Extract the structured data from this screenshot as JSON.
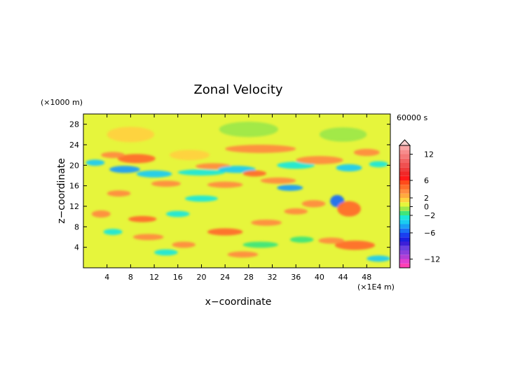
{
  "chart_data": {
    "type": "heatmap",
    "title": "Zonal Velocity",
    "xlabel": "x−coordinate",
    "ylabel": "z−coordinate",
    "x_unit": "(×1E4 m)",
    "y_unit": "(×1000 m)",
    "time_label": "60000 s",
    "xlim": [
      0,
      52
    ],
    "ylim": [
      0,
      30
    ],
    "x_ticks": [
      4,
      8,
      12,
      16,
      20,
      24,
      28,
      32,
      36,
      40,
      44,
      48
    ],
    "x_tick_labels": [
      "4",
      "8",
      "12",
      "16",
      "20",
      "24",
      "28",
      "32",
      "36",
      "40",
      "44",
      "48"
    ],
    "y_ticks": [
      4,
      8,
      12,
      16,
      20,
      24,
      28
    ],
    "y_tick_labels": [
      "4",
      "8",
      "12",
      "16",
      "20",
      "24",
      "28"
    ],
    "colorbar": {
      "range": [
        -14,
        14
      ],
      "ticks": [
        12,
        6,
        2,
        0,
        -2,
        -6,
        -12
      ],
      "tick_labels": [
        "12",
        "6",
        "2",
        "0",
        "−2",
        "−6",
        "−12"
      ],
      "levels": [
        {
          "from": -14,
          "to": -13,
          "color": "#ff3fb4"
        },
        {
          "from": -13,
          "to": -12,
          "color": "#e13fcf"
        },
        {
          "from": -12,
          "to": -11,
          "color": "#b23fd6"
        },
        {
          "from": -11,
          "to": -10,
          "color": "#8c3fdc"
        },
        {
          "from": -10,
          "to": -9,
          "color": "#6a3fe0"
        },
        {
          "from": -9,
          "to": -8,
          "color": "#3d1fd8"
        },
        {
          "from": -8,
          "to": -7,
          "color": "#1a1fe0"
        },
        {
          "from": -7,
          "to": -6,
          "color": "#1a3ff0"
        },
        {
          "from": -6,
          "to": -5,
          "color": "#1a6ff5"
        },
        {
          "from": -5,
          "to": -4,
          "color": "#1a9ff5"
        },
        {
          "from": -4,
          "to": -3,
          "color": "#1accf0"
        },
        {
          "from": -3,
          "to": -2,
          "color": "#1ae8d8"
        },
        {
          "from": -2,
          "to": -1,
          "color": "#3fe67a"
        },
        {
          "from": -1,
          "to": 0,
          "color": "#9ee84a"
        },
        {
          "from": 0,
          "to": 1,
          "color": "#e6f53c"
        },
        {
          "from": 1,
          "to": 2,
          "color": "#ffd23f"
        },
        {
          "from": 2,
          "to": 3,
          "color": "#ffaa3f"
        },
        {
          "from": 3,
          "to": 4,
          "color": "#ff8c3f"
        },
        {
          "from": 4,
          "to": 5,
          "color": "#ff6e2a"
        },
        {
          "from": 5,
          "to": 6,
          "color": "#ff4b1a"
        },
        {
          "from": 6,
          "to": 7,
          "color": "#ff1a1a"
        },
        {
          "from": 7,
          "to": 8,
          "color": "#f02828"
        },
        {
          "from": 8,
          "to": 9,
          "color": "#ee3c3c"
        },
        {
          "from": 9,
          "to": 10,
          "color": "#f05050"
        },
        {
          "from": 10,
          "to": 11,
          "color": "#f26464"
        },
        {
          "from": 11,
          "to": 12,
          "color": "#f47878"
        },
        {
          "from": 12,
          "to": 13,
          "color": "#f78c8c"
        },
        {
          "from": 13,
          "to": 14,
          "color": "#f9a5a5"
        }
      ]
    },
    "field_features": [
      {
        "x": 9,
        "z": 21.3,
        "w": 3.2,
        "h": 0.9,
        "value": 4
      },
      {
        "x": 5,
        "z": 22.0,
        "w": 2.0,
        "h": 0.6,
        "value": 3
      },
      {
        "x": 2,
        "z": 20.5,
        "w": 1.6,
        "h": 0.6,
        "value": -4
      },
      {
        "x": 7,
        "z": 19.2,
        "w": 2.6,
        "h": 0.7,
        "value": -5
      },
      {
        "x": 12,
        "z": 18.3,
        "w": 3.0,
        "h": 0.7,
        "value": -4
      },
      {
        "x": 14,
        "z": 16.4,
        "w": 2.5,
        "h": 0.6,
        "value": 3
      },
      {
        "x": 20,
        "z": 18.6,
        "w": 4.0,
        "h": 0.6,
        "value": -3
      },
      {
        "x": 22,
        "z": 19.8,
        "w": 3.0,
        "h": 0.6,
        "value": 3
      },
      {
        "x": 26,
        "z": 19.2,
        "w": 3.2,
        "h": 0.7,
        "value": -4
      },
      {
        "x": 29,
        "z": 18.4,
        "w": 2.0,
        "h": 0.6,
        "value": 4
      },
      {
        "x": 33,
        "z": 17.0,
        "w": 3.0,
        "h": 0.6,
        "value": 3
      },
      {
        "x": 35,
        "z": 15.6,
        "w": 2.2,
        "h": 0.6,
        "value": -5
      },
      {
        "x": 30,
        "z": 23.2,
        "w": 6.0,
        "h": 0.8,
        "value": 3
      },
      {
        "x": 36,
        "z": 20.0,
        "w": 3.2,
        "h": 0.7,
        "value": -3
      },
      {
        "x": 40,
        "z": 21.0,
        "w": 4.0,
        "h": 0.8,
        "value": 3
      },
      {
        "x": 45,
        "z": 19.5,
        "w": 2.2,
        "h": 0.7,
        "value": -4
      },
      {
        "x": 48,
        "z": 22.5,
        "w": 2.2,
        "h": 0.7,
        "value": 3
      },
      {
        "x": 50,
        "z": 20.2,
        "w": 1.6,
        "h": 0.6,
        "value": -3
      },
      {
        "x": 43,
        "z": 13.0,
        "w": 1.2,
        "h": 1.2,
        "value": -6
      },
      {
        "x": 45,
        "z": 11.5,
        "w": 2.0,
        "h": 1.5,
        "value": 4
      },
      {
        "x": 39,
        "z": 12.5,
        "w": 2.0,
        "h": 0.7,
        "value": 3
      },
      {
        "x": 6,
        "z": 14.5,
        "w": 2.0,
        "h": 0.6,
        "value": 3
      },
      {
        "x": 3,
        "z": 10.5,
        "w": 1.6,
        "h": 0.7,
        "value": 3
      },
      {
        "x": 10,
        "z": 9.5,
        "w": 2.4,
        "h": 0.6,
        "value": 4
      },
      {
        "x": 16,
        "z": 10.5,
        "w": 2.0,
        "h": 0.6,
        "value": -3
      },
      {
        "x": 24,
        "z": 7.0,
        "w": 3.0,
        "h": 0.7,
        "value": 4
      },
      {
        "x": 31,
        "z": 8.8,
        "w": 2.6,
        "h": 0.6,
        "value": 3
      },
      {
        "x": 36,
        "z": 11.0,
        "w": 2.0,
        "h": 0.6,
        "value": 3
      },
      {
        "x": 20,
        "z": 13.5,
        "w": 2.8,
        "h": 0.6,
        "value": -3
      },
      {
        "x": 46,
        "z": 4.4,
        "w": 3.4,
        "h": 0.9,
        "value": 4
      },
      {
        "x": 42,
        "z": 5.3,
        "w": 2.2,
        "h": 0.6,
        "value": 3
      },
      {
        "x": 50,
        "z": 1.8,
        "w": 2.0,
        "h": 0.6,
        "value": -4
      },
      {
        "x": 17,
        "z": 4.5,
        "w": 2.0,
        "h": 0.6,
        "value": 3
      },
      {
        "x": 14,
        "z": 3.0,
        "w": 2.0,
        "h": 0.6,
        "value": -3
      },
      {
        "x": 11,
        "z": 6.0,
        "w": 2.6,
        "h": 0.6,
        "value": 3
      },
      {
        "x": 30,
        "z": 4.5,
        "w": 3.0,
        "h": 0.6,
        "value": -2
      },
      {
        "x": 27,
        "z": 2.6,
        "w": 2.6,
        "h": 0.6,
        "value": 3
      },
      {
        "x": 5,
        "z": 7.0,
        "w": 1.6,
        "h": 0.6,
        "value": -3
      },
      {
        "x": 24,
        "z": 16.2,
        "w": 3.0,
        "h": 0.6,
        "value": 3
      },
      {
        "x": 37,
        "z": 5.5,
        "w": 2.0,
        "h": 0.6,
        "value": -2
      },
      {
        "x": 18,
        "z": 22.0,
        "w": 3.4,
        "h": 1.0,
        "value": 1
      },
      {
        "x": 8,
        "z": 26.0,
        "w": 4.0,
        "h": 1.5,
        "value": 1
      },
      {
        "x": 28,
        "z": 27.0,
        "w": 5.0,
        "h": 1.5,
        "value": -1
      },
      {
        "x": 44,
        "z": 26.0,
        "w": 4.0,
        "h": 1.4,
        "value": -1
      }
    ]
  }
}
